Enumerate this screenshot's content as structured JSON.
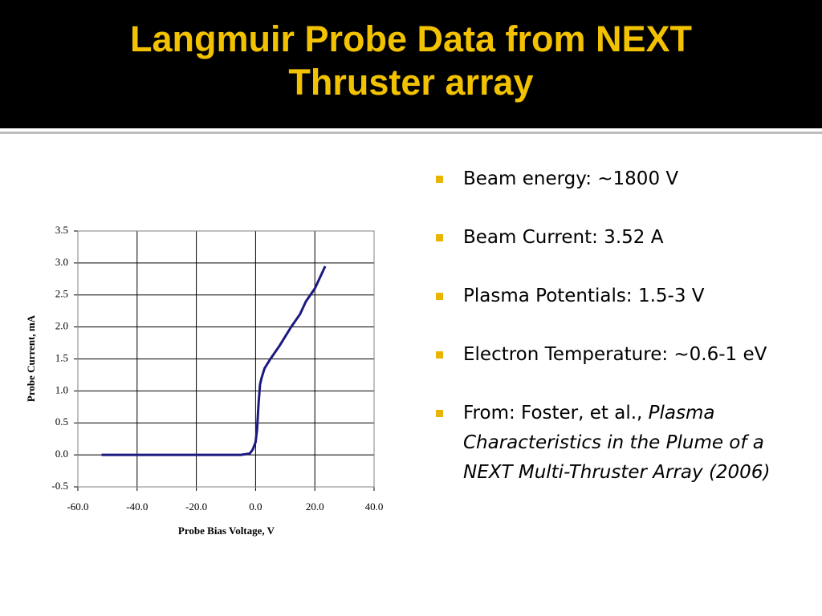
{
  "title": "Langmuir Probe Data from NEXT Thruster array",
  "bullets": [
    {
      "text": "Beam energy: ~1800 V"
    },
    {
      "text": "Beam Current: 3.52 A"
    },
    {
      "text": "Plasma Potentials: 1.5-3 V"
    },
    {
      "text": "Electron Temperature: ~0.6-1 eV"
    },
    {
      "text": "From: Foster, et al.,",
      "italic": "Plasma Characteristics in the Plume of a NEXT Multi-Thruster Array (2006)"
    }
  ],
  "chart_data": {
    "type": "line",
    "x_label": "Probe Bias Voltage, V",
    "y_label": "Probe Current, mA",
    "x": [
      -52,
      -45,
      -40,
      -30,
      -20,
      -10,
      -5,
      -2,
      -1,
      0,
      0.5,
      1,
      1.5,
      2,
      3,
      5,
      8,
      10,
      12,
      15,
      17,
      20,
      22,
      23.5
    ],
    "series": [
      {
        "color": "#1a1a80",
        "values": [
          0,
          0,
          0,
          0,
          0,
          0,
          0,
          0.02,
          0.08,
          0.2,
          0.4,
          0.8,
          1.1,
          1.2,
          1.35,
          1.5,
          1.7,
          1.85,
          2.0,
          2.2,
          2.4,
          2.6,
          2.8,
          2.95
        ]
      }
    ],
    "xlim": [
      -60,
      40
    ],
    "xticks": [
      {
        "value": -60,
        "label": "-60.0"
      },
      {
        "value": -40,
        "label": "-40.0"
      },
      {
        "value": -20,
        "label": "-20.0"
      },
      {
        "value": 0,
        "label": "0.0"
      },
      {
        "value": 20,
        "label": "20.0"
      },
      {
        "value": 40,
        "label": "40.0"
      }
    ],
    "ylim": [
      -0.5,
      3.5
    ],
    "yticks": [
      -0.5,
      {
        "value": 0,
        "label": "0.0"
      },
      0.5,
      {
        "value": 1,
        "label": "1.0"
      },
      1.5,
      {
        "value": 2,
        "label": "2.0"
      },
      2.5,
      {
        "value": 3,
        "label": "3.0"
      },
      3.5
    ],
    "grid": true
  }
}
